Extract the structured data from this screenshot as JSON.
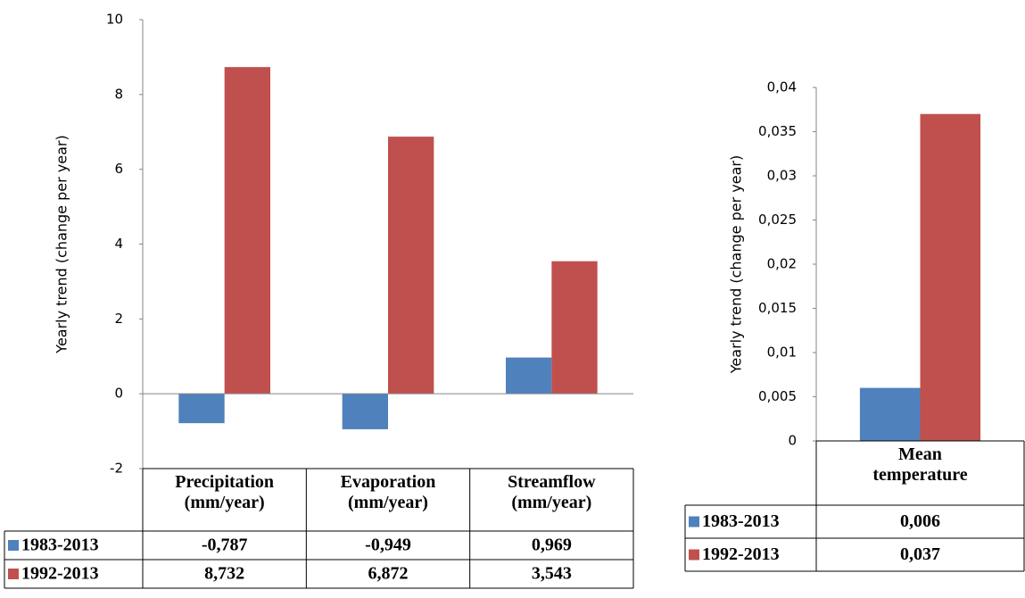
{
  "chart_data": [
    {
      "type": "bar",
      "ylabel": "Yearly trend (change per year)",
      "categories": [
        "Precipitation (mm/year)",
        "Evaporation (mm/year)",
        "Streamflow (mm/year)"
      ],
      "series": [
        {
          "name": "1983-2013",
          "color": "#4f81bd",
          "values": [
            -0.787,
            -0.949,
            0.969
          ],
          "value_labels": [
            "-0,787",
            "-0,949",
            "0,969"
          ]
        },
        {
          "name": "1992-2013",
          "color": "#c0504d",
          "values": [
            8.732,
            6.872,
            3.543
          ],
          "value_labels": [
            "8,732",
            "6,872",
            "3,543"
          ]
        }
      ],
      "ylim": [
        -2,
        10
      ],
      "yticks": [
        -2,
        0,
        2,
        4,
        6,
        8,
        10
      ]
    },
    {
      "type": "bar",
      "ylabel": "Yearly trend (change per year)",
      "categories": [
        "Mean temperature"
      ],
      "series": [
        {
          "name": "1983-2013",
          "color": "#4f81bd",
          "values": [
            0.006
          ],
          "value_labels": [
            "0,006"
          ]
        },
        {
          "name": "1992-2013",
          "color": "#c0504d",
          "values": [
            0.037
          ],
          "value_labels": [
            "0,037"
          ]
        }
      ],
      "ylim": [
        0,
        0.04
      ],
      "yticks": [
        0,
        {
          "value": 0.005,
          "label": "0,005"
        },
        {
          "value": 0.01,
          "label": "0,01"
        },
        {
          "value": 0.015,
          "label": "0,015"
        },
        {
          "value": 0.02,
          "label": "0,02"
        },
        {
          "value": 0.025,
          "label": "0,025"
        },
        {
          "value": 0.03,
          "label": "0,03"
        },
        {
          "value": 0.035,
          "label": "0,035"
        },
        {
          "value": 0.04,
          "label": "0,04"
        }
      ]
    }
  ]
}
